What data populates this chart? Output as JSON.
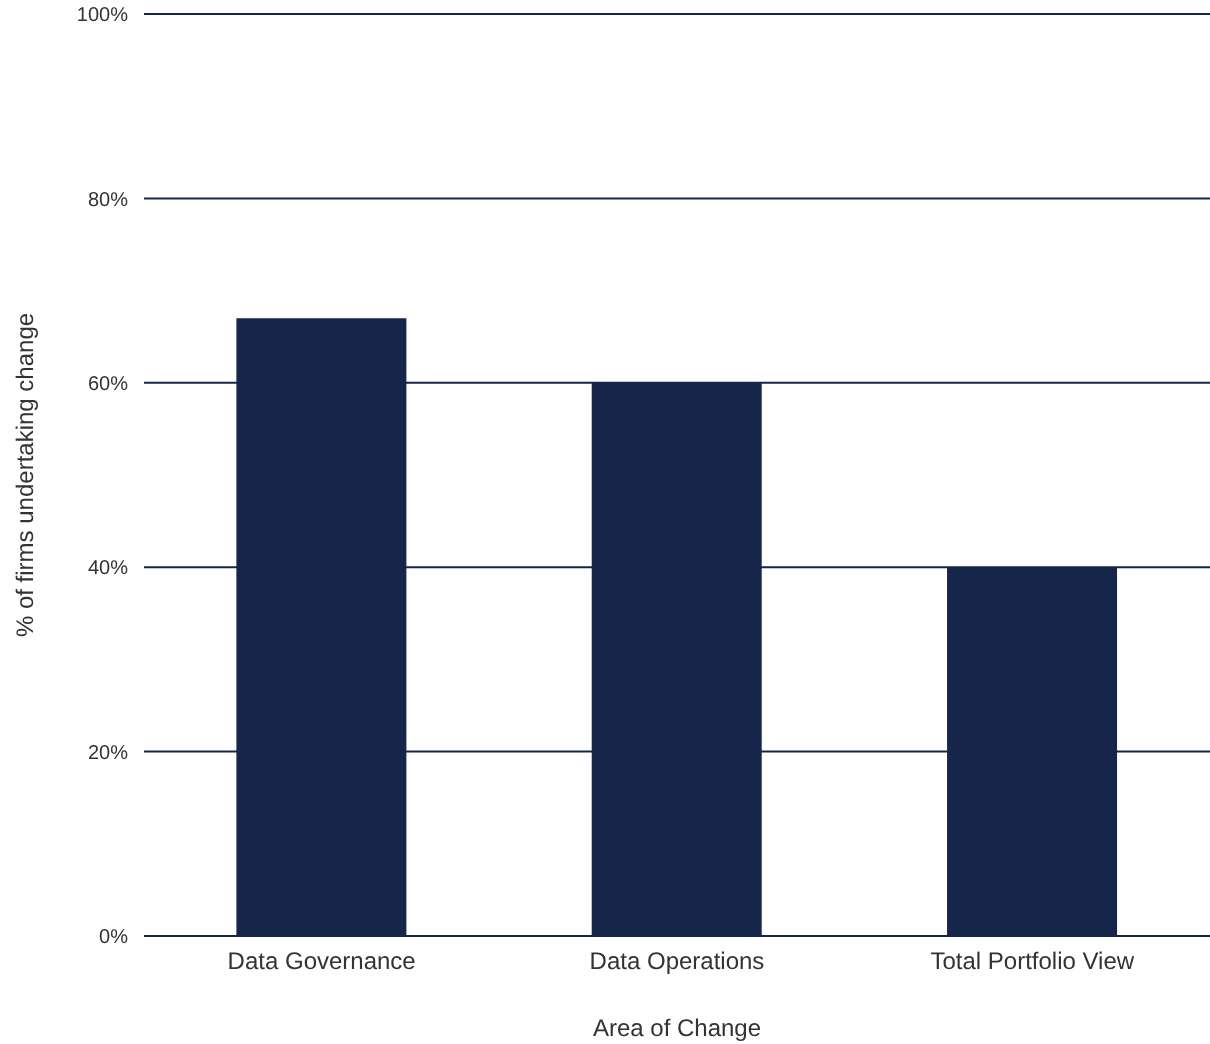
{
  "chart_data": {
    "type": "bar",
    "xlabel": "Area of Change",
    "ylabel": "% of firms undertaking change",
    "categories": [
      "Data Governance",
      "Data Operations",
      "Total Portfolio View"
    ],
    "values": [
      67,
      60,
      40
    ],
    "color": "#16264a",
    "ylim": [
      0,
      100
    ],
    "yticks": [
      {
        "value": 0,
        "label": "0%"
      },
      {
        "value": 20,
        "label": "20%"
      },
      {
        "value": 40,
        "label": "40%"
      },
      {
        "value": 60,
        "label": "60%"
      },
      {
        "value": 80,
        "label": "80%"
      },
      {
        "value": 100,
        "label": "100%"
      }
    ],
    "grid": "y"
  }
}
